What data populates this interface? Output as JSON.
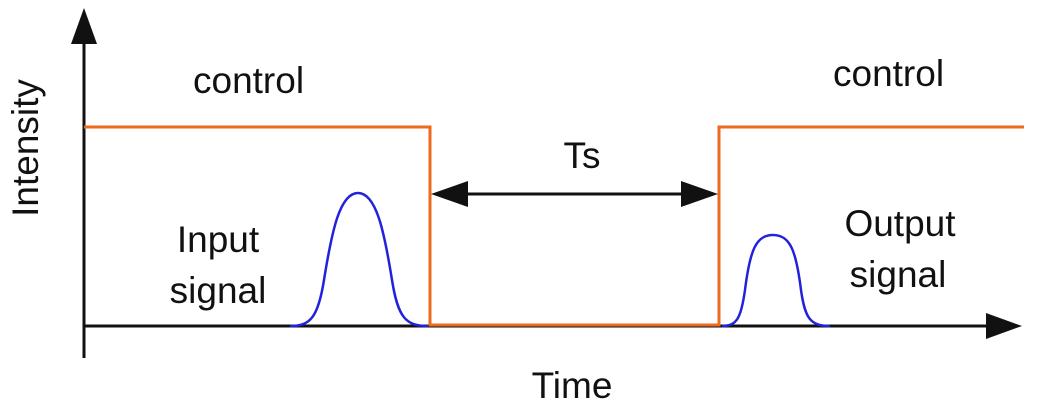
{
  "labels": {
    "control_left": "control",
    "control_right": "control",
    "ts": "Ts",
    "input_line1": "Input",
    "input_line2": "signal",
    "output_line1": "Output",
    "output_line2": "signal",
    "y_axis": "Intensity",
    "x_axis": "Time"
  },
  "colors": {
    "control": "#ee6a1c",
    "signal": "#2222dd",
    "axis": "#111111"
  }
}
